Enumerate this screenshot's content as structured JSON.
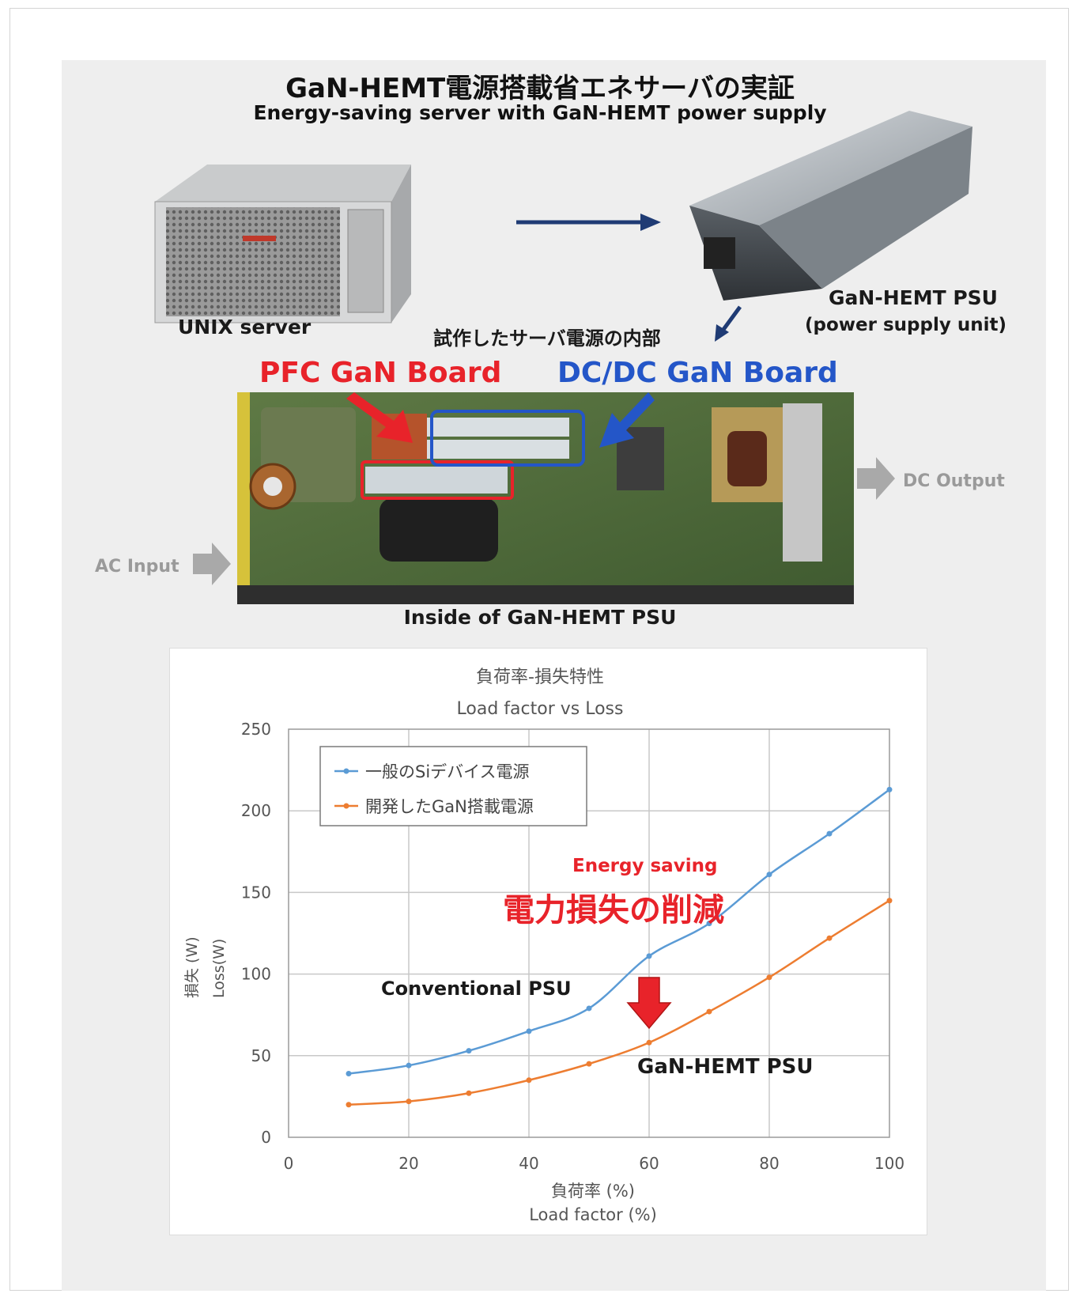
{
  "header": {
    "title_jp": "GaN-HEMT電源搭載省エネサーバの実証",
    "title_en": "Energy-saving server with GaN-HEMT power supply"
  },
  "top": {
    "unix_label": "UNIX server",
    "psu_label_1": "GaN-HEMT PSU",
    "psu_label_2": "(power supply unit)",
    "inside_jp": "試作したサーバ電源の内部"
  },
  "board": {
    "pfc_label": "PFC GaN Board",
    "dcdc_label": "DC/DC GaN Board",
    "ac_input": "AC Input",
    "dc_output": "DC Output",
    "caption": "Inside of GaN-HEMT PSU"
  },
  "colors": {
    "si": "#5b9bd5",
    "gan": "#ed7d31",
    "pfc": "#e8232a",
    "dcdc": "#2456c8"
  },
  "chart_data": {
    "type": "line",
    "title": "負荷率-損失特性",
    "subtitle": "Load factor vs Loss",
    "xlabel": "負荷率 (%)",
    "xlabel2": "Load factor (%)",
    "ylabel": "損失 (W)",
    "ylabel2": "Loss(W)",
    "xlim": [
      0,
      100
    ],
    "ylim": [
      0,
      250
    ],
    "x_ticks": [
      "0",
      "20",
      "40",
      "60",
      "80",
      "100"
    ],
    "y_ticks": [
      "0",
      "50",
      "100",
      "150",
      "200",
      "250"
    ],
    "grid": true,
    "legend": "top-left",
    "series": [
      {
        "name": "一般のSiデバイス電源",
        "x": [
          10,
          20,
          30,
          40,
          50,
          60,
          70,
          80,
          90,
          100
        ],
        "values": [
          39,
          44,
          53,
          65,
          79,
          111,
          131,
          161,
          186,
          213
        ]
      },
      {
        "name": "開発したGaN搭載電源",
        "x": [
          10,
          20,
          30,
          40,
          50,
          60,
          70,
          80,
          90,
          100
        ],
        "values": [
          20,
          22,
          27,
          35,
          45,
          58,
          77,
          98,
          122,
          145
        ]
      }
    ],
    "annotations": {
      "energy_en": "Energy saving",
      "energy_jp": "電力損失の削減",
      "conventional": "Conventional PSU",
      "gan": "GaN-HEMT PSU"
    }
  }
}
